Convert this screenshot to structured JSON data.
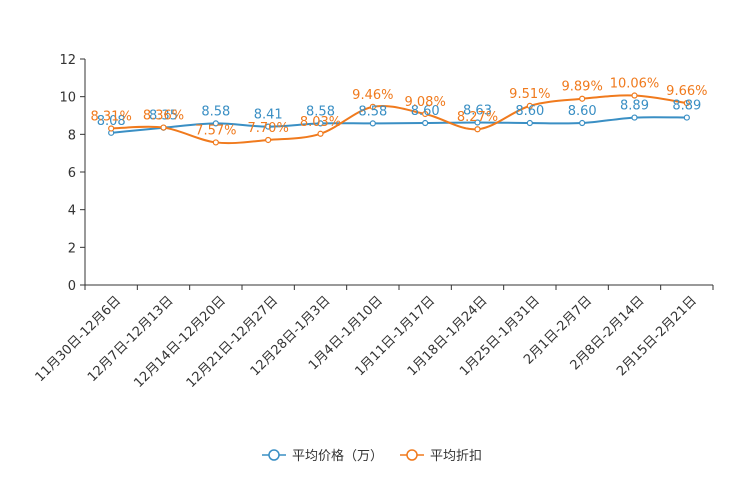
{
  "chart_data": {
    "type": "line",
    "categories": [
      "11月30日-12月6日",
      "12月7日-12月13日",
      "12月14日-12月20日",
      "12月21日-12月27日",
      "12月28日-1月3日",
      "1月4日-1月10日",
      "1月11日-1月17日",
      "1月18日-1月24日",
      "1月25日-1月31日",
      "2月1日-2月7日",
      "2月8日-2月14日",
      "2月15日-2月21日"
    ],
    "ylim": [
      0,
      12
    ],
    "yticks": [
      0,
      2,
      4,
      6,
      8,
      10,
      12
    ],
    "series": [
      {
        "name": "平均价格（万）",
        "color": "#3a8fc4",
        "values": [
          8.08,
          8.35,
          8.58,
          8.41,
          8.58,
          8.58,
          8.6,
          8.63,
          8.6,
          8.6,
          8.89,
          8.89
        ],
        "labels": [
          "8.08",
          "8.35",
          "8.58",
          "8.41",
          "8.58",
          "8.58",
          "8.60",
          "8.63",
          "8.60",
          "8.60",
          "8.89",
          "8.89"
        ]
      },
      {
        "name": "平均折扣",
        "color": "#f07a1d",
        "values": [
          8.31,
          8.36,
          7.57,
          7.7,
          8.03,
          9.46,
          9.08,
          8.27,
          9.51,
          9.89,
          10.06,
          9.66
        ],
        "labels": [
          "8.31%",
          "8.36%",
          "7.57%",
          "7.70%",
          "8.03%",
          "9.46%",
          "9.08%",
          "8.27%",
          "9.51%",
          "9.89%",
          "10.06%",
          "9.66%"
        ]
      }
    ],
    "legend_position": "bottom-center"
  }
}
